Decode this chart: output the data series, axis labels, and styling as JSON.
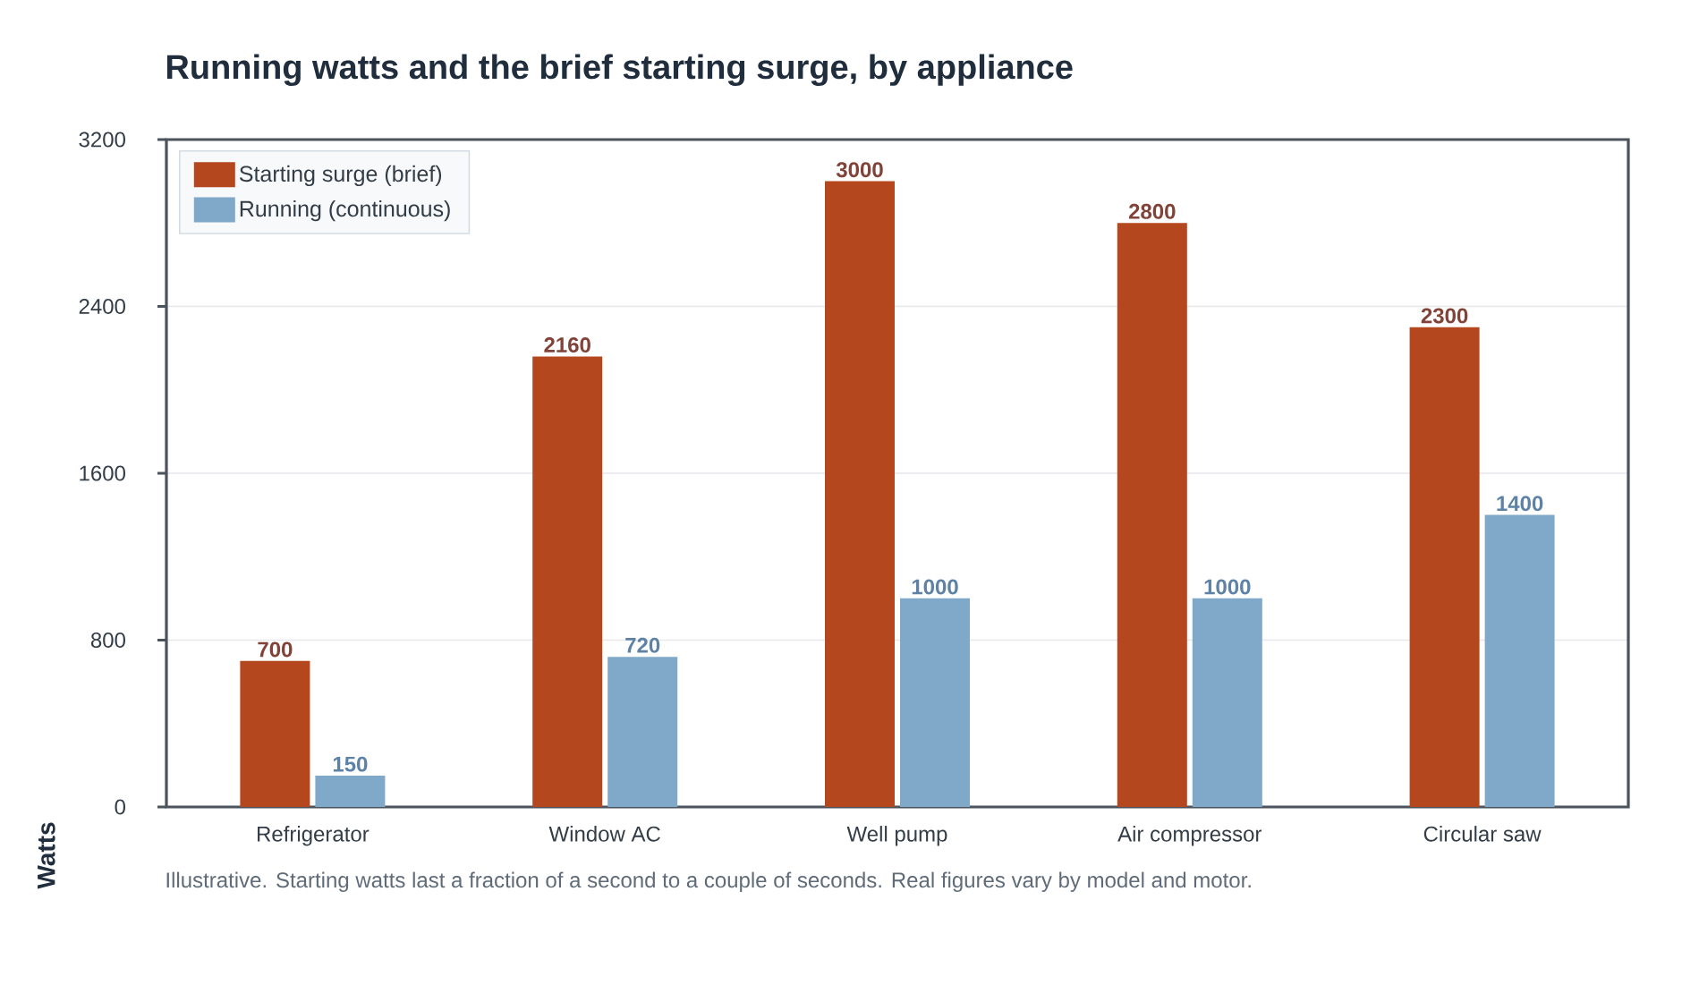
{
  "chart_data": {
    "type": "bar",
    "title": "Running watts and the brief starting surge, by appliance",
    "ylabel": "Watts",
    "categories": [
      "Refrigerator",
      "Window AC",
      "Well pump",
      "Air compressor",
      "Circular saw"
    ],
    "series": [
      {
        "name": "Starting surge (brief)",
        "color": "#b5471f",
        "values": [
          700,
          2160,
          3000,
          2800,
          2300
        ]
      },
      {
        "name": "Running (continuous)",
        "color": "#80a8c9",
        "values": [
          150,
          720,
          1000,
          1000,
          1400
        ]
      }
    ],
    "ylim": [
      0,
      3200
    ],
    "yticks": [
      0,
      800,
      1600,
      2400,
      3200
    ],
    "grid": "y",
    "legend": "top left",
    "data_labels": true,
    "annotations": [
      "Illustrative. Starting watts last a fraction of a second to a couple of seconds. Real figures vary by model and motor."
    ]
  }
}
